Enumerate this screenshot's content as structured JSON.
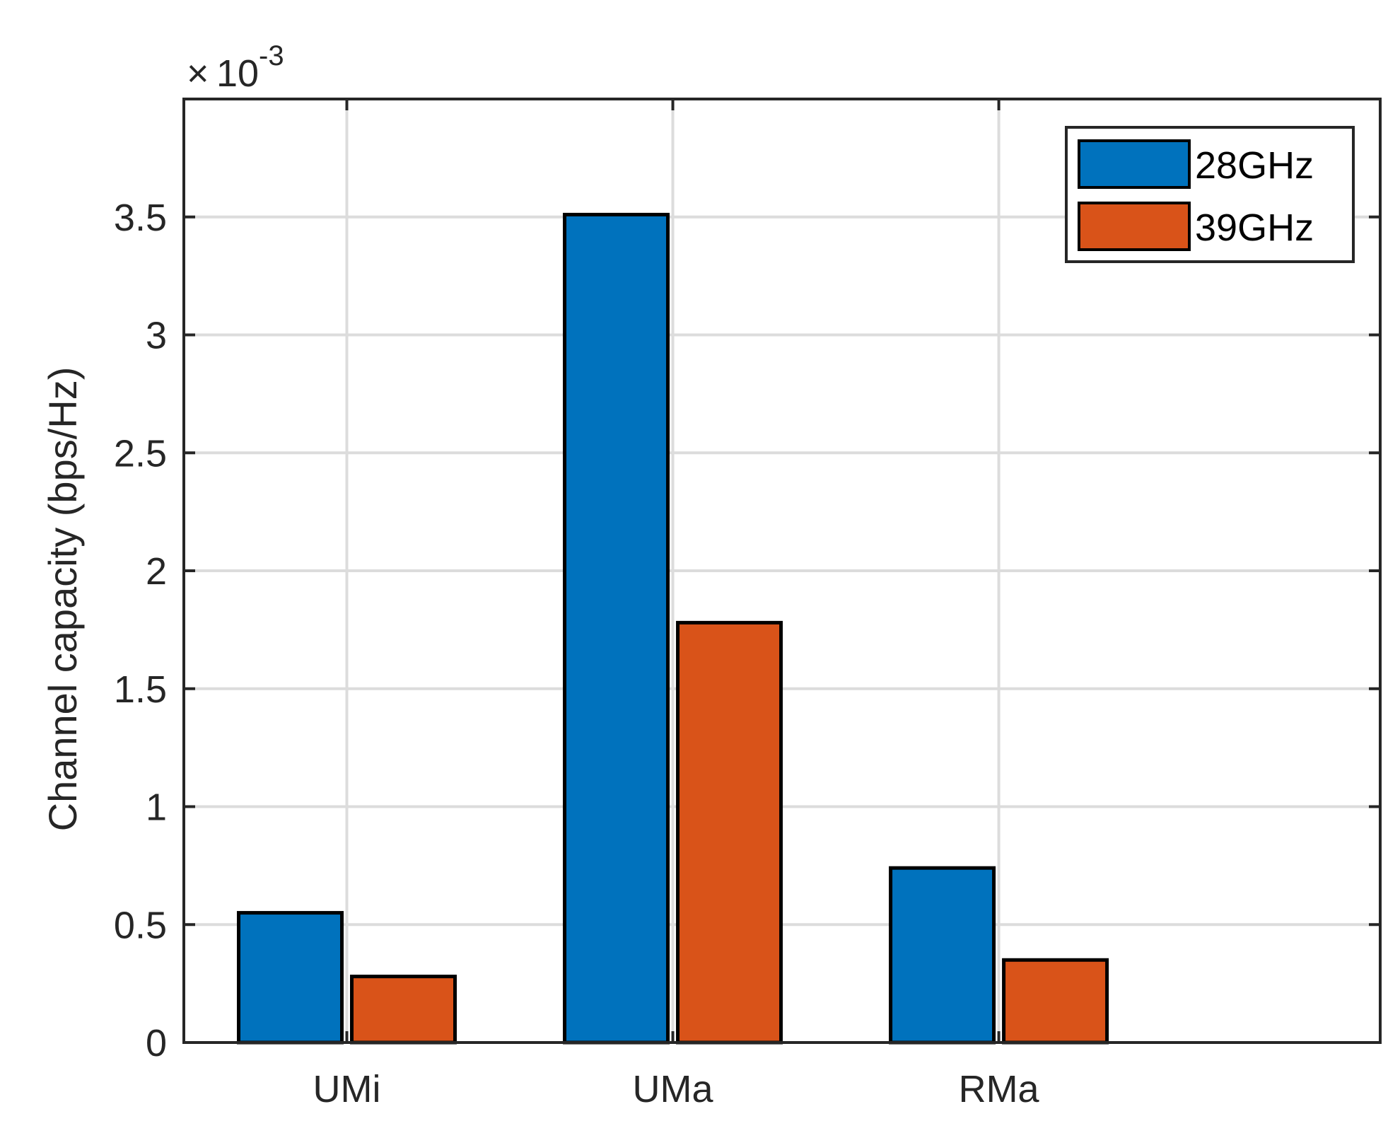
{
  "chart_data": {
    "type": "bar",
    "categories": [
      "UMi",
      "UMa",
      "RMa"
    ],
    "series": [
      {
        "name": "28GHz",
        "values": [
          0.00055,
          0.00351,
          0.00074
        ],
        "color": "#0072BD"
      },
      {
        "name": "39GHz",
        "values": [
          0.00028,
          0.00178,
          0.00035
        ],
        "color": "#D95319"
      }
    ],
    "xlabel": "",
    "ylabel": "Channel capacity (bps/Hz)",
    "ylim": [
      0,
      0.004
    ],
    "yticks": [
      0,
      0.0005,
      0.001,
      0.0015,
      0.002,
      0.0025,
      0.003,
      0.0035
    ],
    "ytick_labels": [
      "0",
      "0.5",
      "1",
      "1.5",
      "2",
      "2.5",
      "3",
      "3.5"
    ],
    "exponent_base": "10",
    "exponent_power": "-3",
    "grid": true,
    "legend_position": "top-right"
  }
}
